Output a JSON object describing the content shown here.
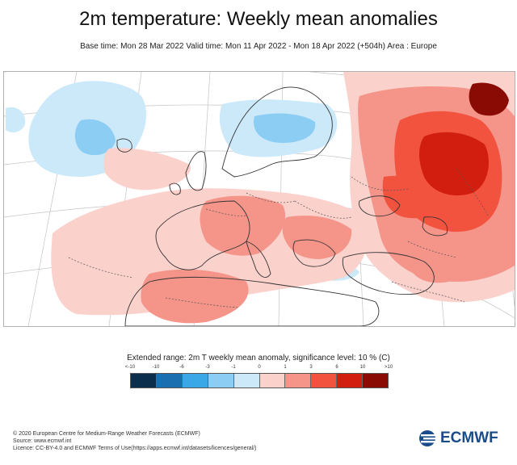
{
  "header": {
    "title": "2m temperature: Weekly mean anomalies",
    "subtitle": "Base time: Mon 28 Mar 2022 Valid time: Mon 11 Apr 2022 - Mon 18 Apr 2022 (+504h) Area : Europe"
  },
  "legend": {
    "title": "Extended range: 2m T weekly mean anomaly, significance level: 10 % (C)",
    "ticks": [
      "<-10",
      "-10",
      "-6",
      "-3",
      "-1",
      "0",
      "1",
      "3",
      "6",
      "10",
      ">10"
    ],
    "colors": [
      "#0b2e4d",
      "#1a6fb0",
      "#3aa8e6",
      "#8ccdf4",
      "#cce9fa",
      "#fbd1cc",
      "#f5958a",
      "#f2533f",
      "#d21e0e",
      "#8a0b04"
    ]
  },
  "footer": {
    "lines": [
      "© 2020 European Centre for Medium-Range Weather Forecasts (ECMWF)",
      "Source: www.ecmwf.int",
      "Licence: CC-BY-4.0 and ECMWF Terms of Use(https://apps.ecmwf.int/datasets/licences/general/)"
    ]
  },
  "logo": {
    "text": "ECMWF"
  },
  "map_colors": {
    "ocean": "#ffffff",
    "land": "#ffffff",
    "coast": "#333333",
    "grid": "#bdbdbd",
    "border": "#555555"
  }
}
